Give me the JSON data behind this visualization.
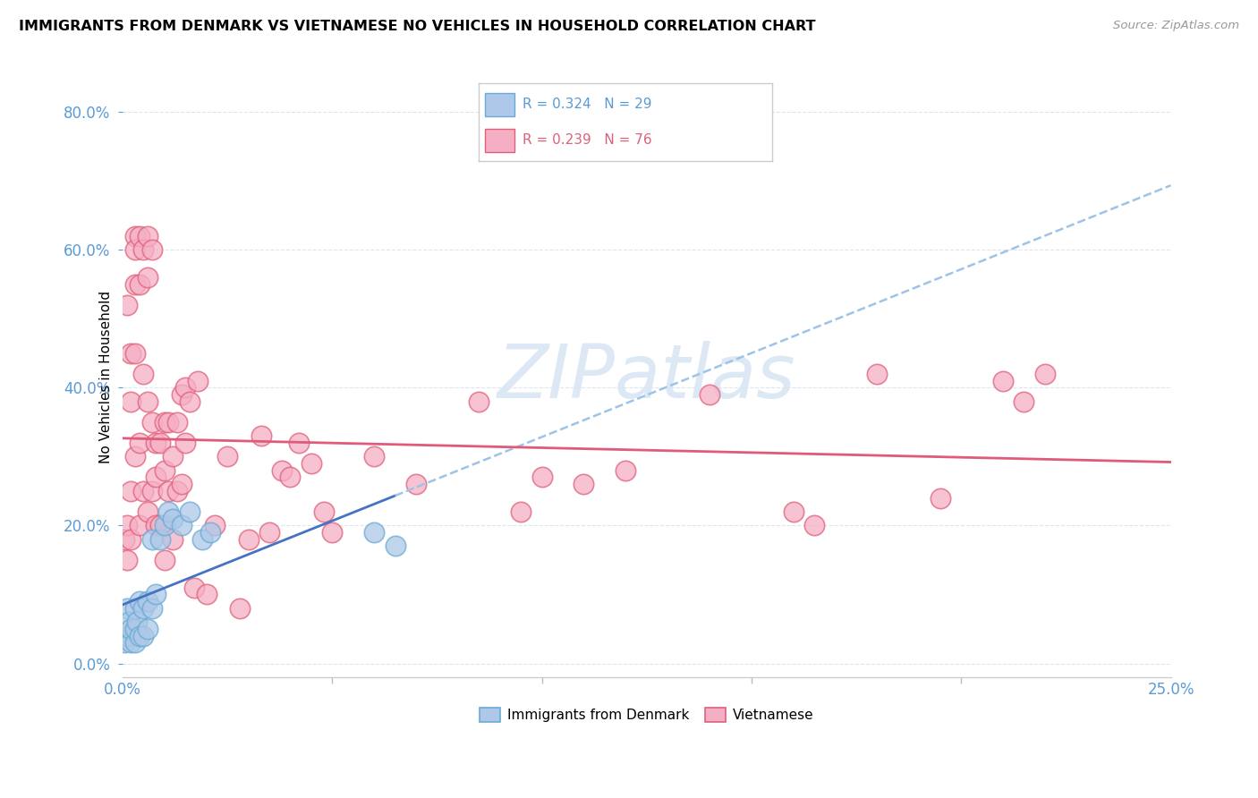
{
  "title": "IMMIGRANTS FROM DENMARK VS VIETNAMESE NO VEHICLES IN HOUSEHOLD CORRELATION CHART",
  "source": "Source: ZipAtlas.com",
  "ylabel": "No Vehicles in Household",
  "r_denmark": 0.324,
  "n_denmark": 29,
  "r_vietnamese": 0.239,
  "n_vietnamese": 76,
  "legend_denmark": "Immigrants from Denmark",
  "legend_vietnamese": "Vietnamese",
  "color_denmark_fill": "#adc8e8",
  "color_denmark_edge": "#6aaad4",
  "color_vietnamese_fill": "#f5afc5",
  "color_vietnamese_edge": "#e0607a",
  "color_denmark_line_solid": "#4472c4",
  "color_denmark_line_dashed": "#9dc3e6",
  "color_vietnamese_line": "#e05a7a",
  "color_axis_text": "#5b9bd5",
  "color_grid": "#dce6f1",
  "xmin": 0.0,
  "xmax": 0.25,
  "ymin": -0.02,
  "ymax": 0.85,
  "denmark_x": [
    0.0005,
    0.001,
    0.001,
    0.0015,
    0.002,
    0.002,
    0.003,
    0.003,
    0.003,
    0.0035,
    0.004,
    0.004,
    0.005,
    0.005,
    0.006,
    0.006,
    0.007,
    0.007,
    0.008,
    0.009,
    0.01,
    0.011,
    0.012,
    0.014,
    0.016,
    0.019,
    0.021,
    0.06,
    0.065
  ],
  "denmark_y": [
    0.03,
    0.04,
    0.08,
    0.06,
    0.03,
    0.05,
    0.03,
    0.05,
    0.08,
    0.06,
    0.04,
    0.09,
    0.04,
    0.08,
    0.05,
    0.09,
    0.08,
    0.18,
    0.1,
    0.18,
    0.2,
    0.22,
    0.21,
    0.2,
    0.22,
    0.18,
    0.19,
    0.19,
    0.17
  ],
  "vietnamese_x": [
    0.0005,
    0.001,
    0.001,
    0.001,
    0.002,
    0.002,
    0.002,
    0.002,
    0.003,
    0.003,
    0.003,
    0.003,
    0.003,
    0.004,
    0.004,
    0.004,
    0.004,
    0.005,
    0.005,
    0.005,
    0.006,
    0.006,
    0.006,
    0.006,
    0.007,
    0.007,
    0.007,
    0.008,
    0.008,
    0.008,
    0.009,
    0.009,
    0.01,
    0.01,
    0.01,
    0.011,
    0.011,
    0.012,
    0.012,
    0.013,
    0.013,
    0.014,
    0.014,
    0.015,
    0.015,
    0.016,
    0.017,
    0.018,
    0.02,
    0.022,
    0.025,
    0.028,
    0.03,
    0.033,
    0.035,
    0.038,
    0.04,
    0.042,
    0.045,
    0.048,
    0.05,
    0.06,
    0.07,
    0.085,
    0.095,
    0.1,
    0.11,
    0.12,
    0.14,
    0.16,
    0.165,
    0.18,
    0.195,
    0.21,
    0.215,
    0.22
  ],
  "vietnamese_y": [
    0.18,
    0.52,
    0.2,
    0.15,
    0.45,
    0.38,
    0.25,
    0.18,
    0.62,
    0.6,
    0.55,
    0.45,
    0.3,
    0.62,
    0.55,
    0.32,
    0.2,
    0.6,
    0.42,
    0.25,
    0.62,
    0.56,
    0.38,
    0.22,
    0.6,
    0.35,
    0.25,
    0.32,
    0.27,
    0.2,
    0.32,
    0.2,
    0.35,
    0.28,
    0.15,
    0.35,
    0.25,
    0.3,
    0.18,
    0.35,
    0.25,
    0.39,
    0.26,
    0.4,
    0.32,
    0.38,
    0.11,
    0.41,
    0.1,
    0.2,
    0.3,
    0.08,
    0.18,
    0.33,
    0.19,
    0.28,
    0.27,
    0.32,
    0.29,
    0.22,
    0.19,
    0.3,
    0.26,
    0.38,
    0.22,
    0.27,
    0.26,
    0.28,
    0.39,
    0.22,
    0.2,
    0.42,
    0.24,
    0.41,
    0.38,
    0.42
  ]
}
